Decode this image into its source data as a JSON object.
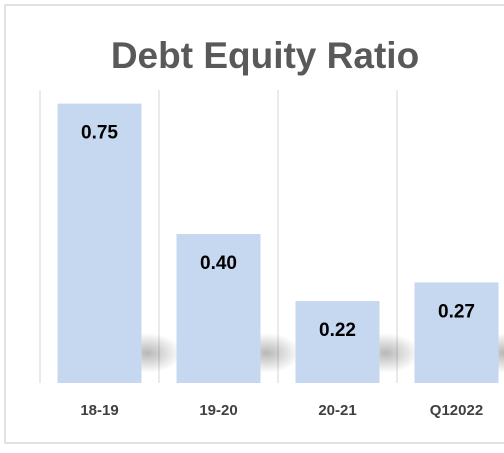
{
  "chart_data": {
    "type": "bar",
    "title": "Debt Equity Ratio",
    "categories": [
      "18-19",
      "19-20",
      "20-21",
      "Q12022"
    ],
    "values": [
      0.75,
      0.4,
      0.22,
      0.27
    ],
    "value_labels": [
      "0.75",
      "0.40",
      "0.22",
      "0.27"
    ],
    "color": "#c6d7f0",
    "ylim": [
      0,
      0.8
    ]
  }
}
